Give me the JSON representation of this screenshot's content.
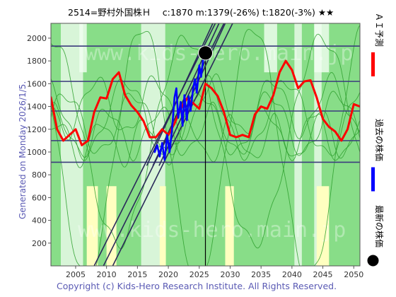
{
  "header": {
    "title": "2514=野村外国株Ｈ　 c:1870  m:1379(-26%)  t:1820(-3%)  ★★"
  },
  "side_note": "Generated on Monday 2026/1/5.",
  "copyright": "Copyright (c) Kids-Hero Research Institute. All Rights Reserved.",
  "watermark": "www.kids-hero.main.jp",
  "legend": [
    {
      "label": "ＡＩ予測",
      "color": "#ff0000",
      "kind": "line"
    },
    {
      "label": "過去の株価",
      "color": "#0000ff",
      "kind": "line"
    },
    {
      "label": "最新の株価",
      "color": "#000000",
      "kind": "dot"
    }
  ],
  "colors": {
    "background_green": "#88dd88",
    "light_band": "#d8f5d8",
    "yellow_band": "#ffffc0",
    "grid_line": "#3b3b7d",
    "forecast": "#ff0000",
    "past_price": "#0000ff",
    "current_marker": "#000000",
    "trend_line": "#2a2a5a",
    "cycle_lines": "#2ea02e"
  },
  "chart_data": {
    "type": "line",
    "xlim": [
      2001,
      2051
    ],
    "ylim": [
      0,
      2130
    ],
    "x_ticks": [
      2005,
      2010,
      2015,
      2020,
      2025,
      2030,
      2035,
      2040,
      2045,
      2050
    ],
    "y_ticks": [
      200,
      400,
      600,
      800,
      1000,
      1200,
      1400,
      1600,
      1800,
      2000
    ],
    "horizontal_levels": [
      910,
      1100,
      1360,
      1620,
      1930
    ],
    "current": {
      "x": 2026.0,
      "y": 1870
    },
    "current_vertical_x": 2026.0,
    "light_bands": [
      [
        2002.6,
        2006.2
      ],
      [
        2015.6,
        2019.5
      ],
      [
        2040.4,
        2041.6
      ],
      [
        2043.6,
        2044.8
      ]
    ],
    "yellow_bands": [
      [
        2006.8,
        2008.6
      ],
      [
        2010.0,
        2011.6
      ],
      [
        2018.6,
        2019.6
      ],
      [
        2029.2,
        2030.6
      ],
      [
        2044.0,
        2046.0
      ]
    ],
    "trend_lines": [
      {
        "x": [
          2016.5,
          2027.2
        ],
        "y": [
          880,
          2130
        ]
      },
      {
        "x": [
          2017.5,
          2028.2
        ],
        "y": [
          880,
          2130
        ]
      },
      {
        "x": [
          2018.5,
          2029.2
        ],
        "y": [
          880,
          2130
        ]
      },
      {
        "x": [
          2008.0,
          2027.6
        ],
        "y": [
          0,
          2130
        ]
      },
      {
        "x": [
          2009.5,
          2029.0
        ],
        "y": [
          0,
          2130
        ]
      },
      {
        "x": [
          2011.0,
          2030.4
        ],
        "y": [
          0,
          2130
        ]
      }
    ],
    "series": [
      {
        "name": "ＡＩ予測",
        "x": [
          2001.0,
          2002.0,
          2003.0,
          2004.0,
          2005.0,
          2006.0,
          2007.0,
          2008.0,
          2009.0,
          2010.0,
          2011.0,
          2012.0,
          2013.0,
          2014.0,
          2015.0,
          2016.0,
          2017.0,
          2018.0,
          2019.0,
          2020.0,
          2021.0,
          2022.0,
          2023.0,
          2024.0,
          2025.0,
          2026.0,
          2027.0,
          2028.0,
          2029.0,
          2030.0,
          2031.0,
          2032.0,
          2033.0,
          2034.0,
          2035.0,
          2036.0,
          2037.0,
          2038.0,
          2039.0,
          2040.0,
          2041.0,
          2042.0,
          2043.0,
          2044.0,
          2045.0,
          2046.0,
          2047.0,
          2048.0,
          2049.0,
          2050.0,
          2051.0
        ],
        "y": [
          1480,
          1200,
          1100,
          1150,
          1200,
          1060,
          1100,
          1350,
          1480,
          1470,
          1640,
          1700,
          1500,
          1410,
          1350,
          1270,
          1130,
          1130,
          1200,
          1150,
          1250,
          1380,
          1470,
          1430,
          1380,
          1600,
          1560,
          1490,
          1350,
          1150,
          1130,
          1150,
          1130,
          1330,
          1400,
          1380,
          1500,
          1700,
          1800,
          1720,
          1560,
          1620,
          1630,
          1480,
          1290,
          1220,
          1180,
          1100,
          1200,
          1420,
          1400
        ]
      },
      {
        "name": "過去の株価",
        "x": [
          2017.8,
          2018.2,
          2018.6,
          2019.0,
          2019.4,
          2019.8,
          2020.2,
          2020.6,
          2021.0,
          2021.3,
          2021.6,
          2022.0,
          2022.3,
          2022.6,
          2023.0,
          2023.3,
          2023.6,
          2024.0,
          2024.3,
          2024.6,
          2025.0,
          2025.3,
          2025.6,
          2026.0
        ],
        "y": [
          1000,
          1060,
          960,
          1080,
          930,
          1150,
          1000,
          1200,
          1480,
          1560,
          1300,
          1440,
          1230,
          1500,
          1280,
          1490,
          1360,
          1550,
          1640,
          1520,
          1760,
          1660,
          1800,
          1870
        ]
      }
    ]
  }
}
